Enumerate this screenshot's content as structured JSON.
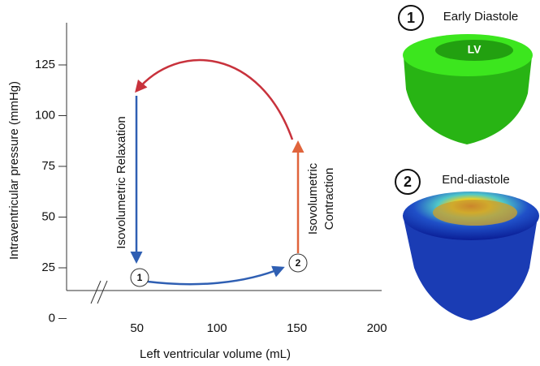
{
  "chart_data": {
    "type": "line",
    "x_label": "Left ventricular volume (mL)",
    "y_label": "Intraventricular pressure (mmHg)",
    "xlim": [
      6,
      203
    ],
    "xticks": [
      50,
      100,
      150,
      200
    ],
    "ylim": [
      0,
      145
    ],
    "yticks": [
      0,
      25,
      50,
      75,
      100,
      125
    ],
    "grid": false,
    "annotations": [
      "Isovolumetric Relaxation",
      "Isovolumetric",
      "Contraction"
    ],
    "points": [
      "1",
      "2"
    ]
  },
  "panels": [
    {
      "number": "1",
      "title": "Early Diastole",
      "label": "LV"
    },
    {
      "number": "2",
      "title": "End-diastole"
    }
  ]
}
